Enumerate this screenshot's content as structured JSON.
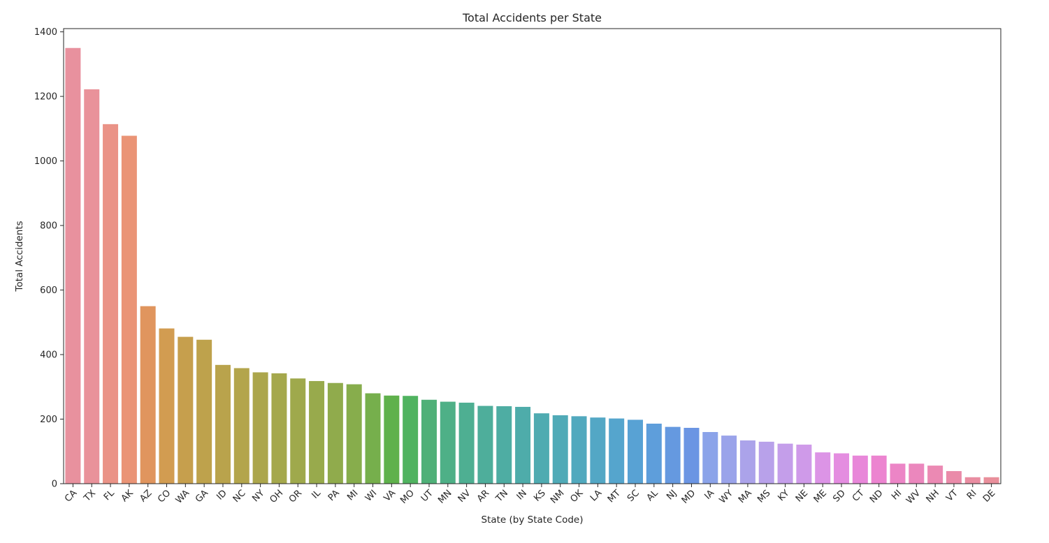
{
  "chart_data": {
    "type": "bar",
    "title": "Total Accidents per State",
    "xlabel": "State (by State Code)",
    "ylabel": "Total Accidents",
    "ylim": [
      0,
      1410
    ],
    "yticks": [
      0,
      200,
      400,
      600,
      800,
      1000,
      1200,
      1400
    ],
    "grid": false,
    "categories": [
      "CA",
      "TX",
      "FL",
      "AK",
      "AZ",
      "CO",
      "WA",
      "GA",
      "ID",
      "NC",
      "NY",
      "OH",
      "OR",
      "IL",
      "PA",
      "MI",
      "WI",
      "VA",
      "MO",
      "UT",
      "MN",
      "NV",
      "AR",
      "TN",
      "IN",
      "KS",
      "NM",
      "OK",
      "LA",
      "MT",
      "SC",
      "AL",
      "NJ",
      "MD",
      "IA",
      "WY",
      "MA",
      "MS",
      "KY",
      "NE",
      "ME",
      "SD",
      "CT",
      "ND",
      "HI",
      "WV",
      "NH",
      "VT",
      "RI",
      "DE"
    ],
    "values": [
      1350,
      1222,
      1114,
      1078,
      550,
      481,
      455,
      446,
      368,
      358,
      345,
      342,
      326,
      318,
      312,
      308,
      280,
      273,
      272,
      260,
      254,
      251,
      241,
      240,
      238,
      218,
      212,
      209,
      205,
      202,
      198,
      186,
      176,
      173,
      160,
      149,
      134,
      130,
      124,
      121,
      97,
      94,
      87,
      87,
      62,
      62,
      56,
      39,
      20,
      20
    ],
    "colors": [
      "#e8919e",
      "#e9929a",
      "#ea9387",
      "#ea9476",
      "#e0955e",
      "#d29c51",
      "#c69f4d",
      "#bea24c",
      "#b9a34c",
      "#b3a54c",
      "#aca64c",
      "#a5a84c",
      "#9fa94c",
      "#98aa4c",
      "#90ab4c",
      "#87ad4c",
      "#76af4c",
      "#5fb14c",
      "#50b360",
      "#4fb078",
      "#4eb087",
      "#4eaf92",
      "#4eae9b",
      "#4eada3",
      "#4eacaa",
      "#4fabb1",
      "#50aab7",
      "#51a9be",
      "#53a7c5",
      "#55a5cd",
      "#58a2d4",
      "#5e9edb",
      "#6599e0",
      "#6b95e3",
      "#8ba3e9",
      "#9aa3ea",
      "#aba3ea",
      "#b8a1ea",
      "#c49eea",
      "#cf9ae9",
      "#dc94e6",
      "#e48de0",
      "#e887d9",
      "#ec84d0",
      "#ec85c6",
      "#eb87bd",
      "#eb89b3",
      "#ea8ba9",
      "#e98da1",
      "#e98f9b"
    ]
  }
}
